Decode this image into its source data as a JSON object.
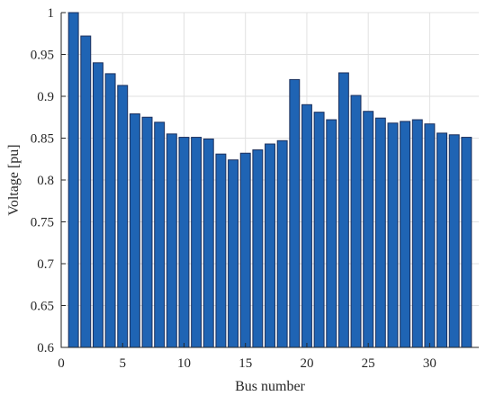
{
  "chart_data": {
    "type": "bar",
    "xlabel": "Bus number",
    "ylabel": "Voltage [pu]",
    "xlim": [
      0,
      34
    ],
    "ylim": [
      0.6,
      1
    ],
    "xticks": [
      0,
      5,
      10,
      15,
      20,
      25,
      30
    ],
    "yticks": [
      0.6,
      0.65,
      0.7,
      0.75,
      0.8,
      0.85,
      0.9,
      0.95,
      1
    ],
    "ytick_labels": [
      "0.6",
      "0.65",
      "0.7",
      "0.75",
      "0.8",
      "0.85",
      "0.9",
      "0.95",
      "1"
    ],
    "grid": true,
    "bar_color": "#1f64b4",
    "x": [
      1,
      2,
      3,
      4,
      5,
      6,
      7,
      8,
      9,
      10,
      11,
      12,
      13,
      14,
      15,
      16,
      17,
      18,
      19,
      20,
      21,
      22,
      23,
      24,
      25,
      26,
      27,
      28,
      29,
      30,
      31,
      32,
      33
    ],
    "values": [
      1.0,
      0.972,
      0.94,
      0.927,
      0.913,
      0.879,
      0.875,
      0.869,
      0.855,
      0.851,
      0.851,
      0.849,
      0.831,
      0.824,
      0.832,
      0.836,
      0.843,
      0.847,
      0.92,
      0.89,
      0.881,
      0.872,
      0.928,
      0.901,
      0.882,
      0.874,
      0.868,
      0.87,
      0.872,
      0.867,
      0.856,
      0.854,
      0.851
    ]
  }
}
